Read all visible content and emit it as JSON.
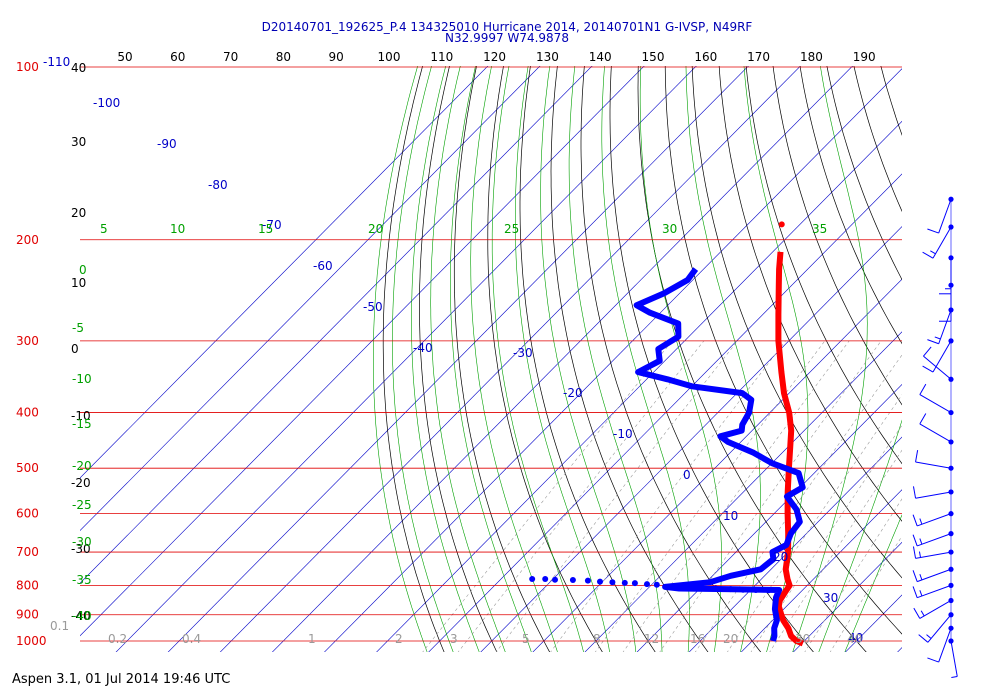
{
  "header": {
    "title_line1": "D20140701_192625_P.4 134325010 Hurricane 2014, 20140701N1 G-IVSP, N49RF",
    "title_line2": "N32.9997 W74.9878"
  },
  "footer": {
    "text": "Aspen 3.1, 01 Jul 2014  19:46 UTC"
  },
  "colors": {
    "isobar": "#e00000",
    "isotherm": "#0000c8",
    "dry_adiabat": "#000000",
    "moist_adiabat": "#00a000",
    "mixing_ratio": "#9a9a9a",
    "temperature_trace": "#ff0000",
    "dewpoint_trace": "#0000ff"
  },
  "chart_data": {
    "type": "scatter",
    "x_axis": "temperature (C), skewed",
    "y_axis": "pressure (hPa), log",
    "ylim": [
      1000,
      100
    ],
    "pressure_labels": [
      "100",
      "200",
      "300",
      "400",
      "500",
      "600",
      "700",
      "800",
      "900",
      "1000"
    ],
    "pressure_levels": [
      100,
      200,
      300,
      400,
      500,
      600,
      700,
      800,
      900,
      1000
    ],
    "top_tick_labels": [
      "50",
      "60",
      "70",
      "80",
      "90",
      "100",
      "110",
      "120",
      "130",
      "140",
      "150",
      "160",
      "170",
      "180",
      "190"
    ],
    "left_f_labels": [
      "-110",
      "40",
      "30",
      "20",
      "10",
      "0",
      "-10",
      "-20",
      "-30",
      "-40"
    ],
    "isotherm_labels": [
      "-100",
      "-90",
      "-80",
      "-70",
      "-60",
      "-50",
      "-40",
      "-30",
      "-20",
      "-10",
      "0",
      "10",
      "20",
      "30",
      "40"
    ],
    "theta_e_labels": [
      "5",
      "10",
      "15",
      "20",
      "25",
      "30",
      "35"
    ],
    "moist_left_labels": [
      "0",
      "-5",
      "-10",
      "-15",
      "-20",
      "-25",
      "-30",
      "-35",
      "-40"
    ],
    "mixing_ratio_labels": [
      "0.1",
      "0.2",
      "0.4",
      "1",
      "2",
      "3",
      "5",
      "8",
      "12",
      "16",
      "20",
      "30",
      "40"
    ],
    "temperature_profile": {
      "name": "Temperature",
      "points": [
        {
          "p": 1010,
          "t": 30.2
        },
        {
          "p": 1000,
          "t": 28.5
        },
        {
          "p": 980,
          "t": 26.5
        },
        {
          "p": 950,
          "t": 24.5
        },
        {
          "p": 920,
          "t": 22.0
        },
        {
          "p": 900,
          "t": 20.6
        },
        {
          "p": 870,
          "t": 18.5
        },
        {
          "p": 850,
          "t": 17.6
        },
        {
          "p": 820,
          "t": 17.0
        },
        {
          "p": 800,
          "t": 16.6
        },
        {
          "p": 780,
          "t": 15.0
        },
        {
          "p": 750,
          "t": 12.8
        },
        {
          "p": 700,
          "t": 10.0
        },
        {
          "p": 650,
          "t": 6.5
        },
        {
          "p": 600,
          "t": 2.6
        },
        {
          "p": 550,
          "t": -1.5
        },
        {
          "p": 500,
          "t": -5.8
        },
        {
          "p": 460,
          "t": -9.5
        },
        {
          "p": 430,
          "t": -12.5
        },
        {
          "p": 400,
          "t": -16.3
        },
        {
          "p": 370,
          "t": -21.0
        },
        {
          "p": 340,
          "t": -25.5
        },
        {
          "p": 300,
          "t": -32.0
        },
        {
          "p": 270,
          "t": -37.0
        },
        {
          "p": 240,
          "t": -42.5
        },
        {
          "p": 225,
          "t": -45.5
        },
        {
          "p": 210,
          "t": -48.5
        }
      ],
      "isolated_point": {
        "p": 188,
        "t": -53.5
      }
    },
    "dewpoint_profile": {
      "name": "Dewpoint",
      "points": [
        {
          "p": 1000,
          "t": 24.0
        },
        {
          "p": 980,
          "t": 23.3
        },
        {
          "p": 950,
          "t": 21.8
        },
        {
          "p": 920,
          "t": 20.8
        },
        {
          "p": 880,
          "t": 18.3
        },
        {
          "p": 840,
          "t": 16.3
        },
        {
          "p": 815,
          "t": 15.5
        },
        {
          "p": 812,
          "t": 5.0
        },
        {
          "p": 810,
          "t": -4.0
        },
        {
          "p": 805,
          "t": -7.0
        },
        {
          "p": 790,
          "t": 0.8
        },
        {
          "p": 770,
          "t": 3.5
        },
        {
          "p": 750,
          "t": 8.0
        },
        {
          "p": 720,
          "t": 8.5
        },
        {
          "p": 700,
          "t": 7.0
        },
        {
          "p": 680,
          "t": 8.3
        },
        {
          "p": 650,
          "t": 7.0
        },
        {
          "p": 620,
          "t": 6.5
        },
        {
          "p": 590,
          "t": 3.5
        },
        {
          "p": 560,
          "t": -0.8
        },
        {
          "p": 540,
          "t": 0.5
        },
        {
          "p": 510,
          "t": -3.0
        },
        {
          "p": 490,
          "t": -10.0
        },
        {
          "p": 470,
          "t": -15.5
        },
        {
          "p": 450,
          "t": -22.5
        },
        {
          "p": 440,
          "t": -25.0
        },
        {
          "p": 430,
          "t": -22.0
        },
        {
          "p": 420,
          "t": -23.0
        },
        {
          "p": 400,
          "t": -24.0
        },
        {
          "p": 380,
          "t": -26.0
        },
        {
          "p": 370,
          "t": -29.0
        },
        {
          "p": 360,
          "t": -40.0
        },
        {
          "p": 350,
          "t": -46.0
        },
        {
          "p": 340,
          "t": -53.0
        },
        {
          "p": 325,
          "t": -51.0
        },
        {
          "p": 310,
          "t": -53.5
        },
        {
          "p": 295,
          "t": -52.0
        },
        {
          "p": 280,
          "t": -54.5
        },
        {
          "p": 268,
          "t": -62.0
        },
        {
          "p": 260,
          "t": -66.0
        },
        {
          "p": 248,
          "t": -63.0
        },
        {
          "p": 235,
          "t": -61.0
        },
        {
          "p": 225,
          "t": -61.5
        }
      ],
      "scattered_points": [
        {
          "p": 780,
          "t": -34.0
        },
        {
          "p": 780,
          "t": -31.5
        },
        {
          "p": 782,
          "t": -29.5
        },
        {
          "p": 783,
          "t": -26.0
        },
        {
          "p": 785,
          "t": -23.0
        },
        {
          "p": 788,
          "t": -20.5
        },
        {
          "p": 790,
          "t": -18.0
        },
        {
          "p": 792,
          "t": -15.5
        },
        {
          "p": 793,
          "t": -13.5
        },
        {
          "p": 796,
          "t": -11.0
        },
        {
          "p": 798,
          "t": -9.0
        },
        {
          "p": 810,
          "t": 3.0
        },
        {
          "p": 812,
          "t": 6.0
        },
        {
          "p": 814,
          "t": 8.5
        },
        {
          "p": 815,
          "t": 11.0
        },
        {
          "p": 816,
          "t": 13.5
        }
      ]
    },
    "wind_barbs": [
      {
        "p": 1000,
        "dir": 170,
        "spd": 5
      },
      {
        "p": 950,
        "dir": 200,
        "spd": 10
      },
      {
        "p": 900,
        "dir": 220,
        "spd": 15
      },
      {
        "p": 850,
        "dir": 240,
        "spd": 15
      },
      {
        "p": 800,
        "dir": 250,
        "spd": 15
      },
      {
        "p": 750,
        "dir": 250,
        "spd": 15
      },
      {
        "p": 700,
        "dir": 260,
        "spd": 15
      },
      {
        "p": 650,
        "dir": 250,
        "spd": 15
      },
      {
        "p": 600,
        "dir": 250,
        "spd": 15
      },
      {
        "p": 550,
        "dir": 260,
        "spd": 10
      },
      {
        "p": 500,
        "dir": 280,
        "spd": 10
      },
      {
        "p": 450,
        "dir": 300,
        "spd": 10
      },
      {
        "p": 400,
        "dir": 300,
        "spd": 10
      },
      {
        "p": 350,
        "dir": 310,
        "spd": 10
      },
      {
        "p": 300,
        "dir": 210,
        "spd": 10
      },
      {
        "p": 265,
        "dir": 200,
        "spd": 15
      },
      {
        "p": 240,
        "dir": 180,
        "spd": 10
      },
      {
        "p": 215,
        "dir": 180,
        "spd": 15
      },
      {
        "p": 190,
        "dir": 210,
        "spd": 15
      },
      {
        "p": 170,
        "dir": 200,
        "spd": 10
      }
    ]
  }
}
